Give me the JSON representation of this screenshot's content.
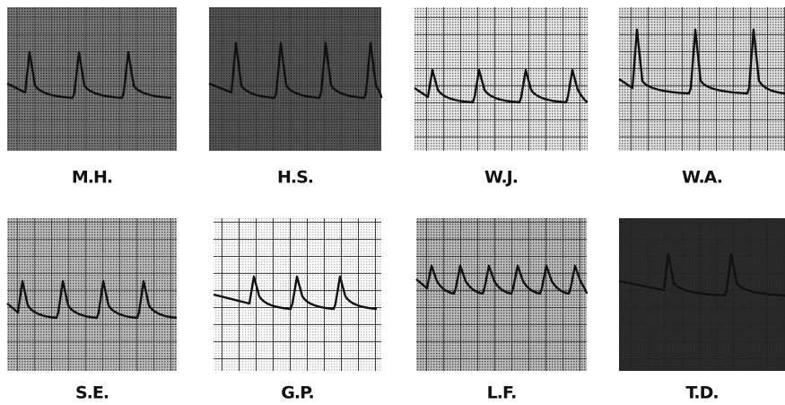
{
  "panels": [
    {
      "label": "M.H."
    },
    {
      "label": "H.S."
    },
    {
      "label": "W.J."
    },
    {
      "label": "W.A."
    },
    {
      "label": "S.E."
    },
    {
      "label": "G.P."
    },
    {
      "label": "L.F."
    },
    {
      "label": "T.D."
    }
  ]
}
